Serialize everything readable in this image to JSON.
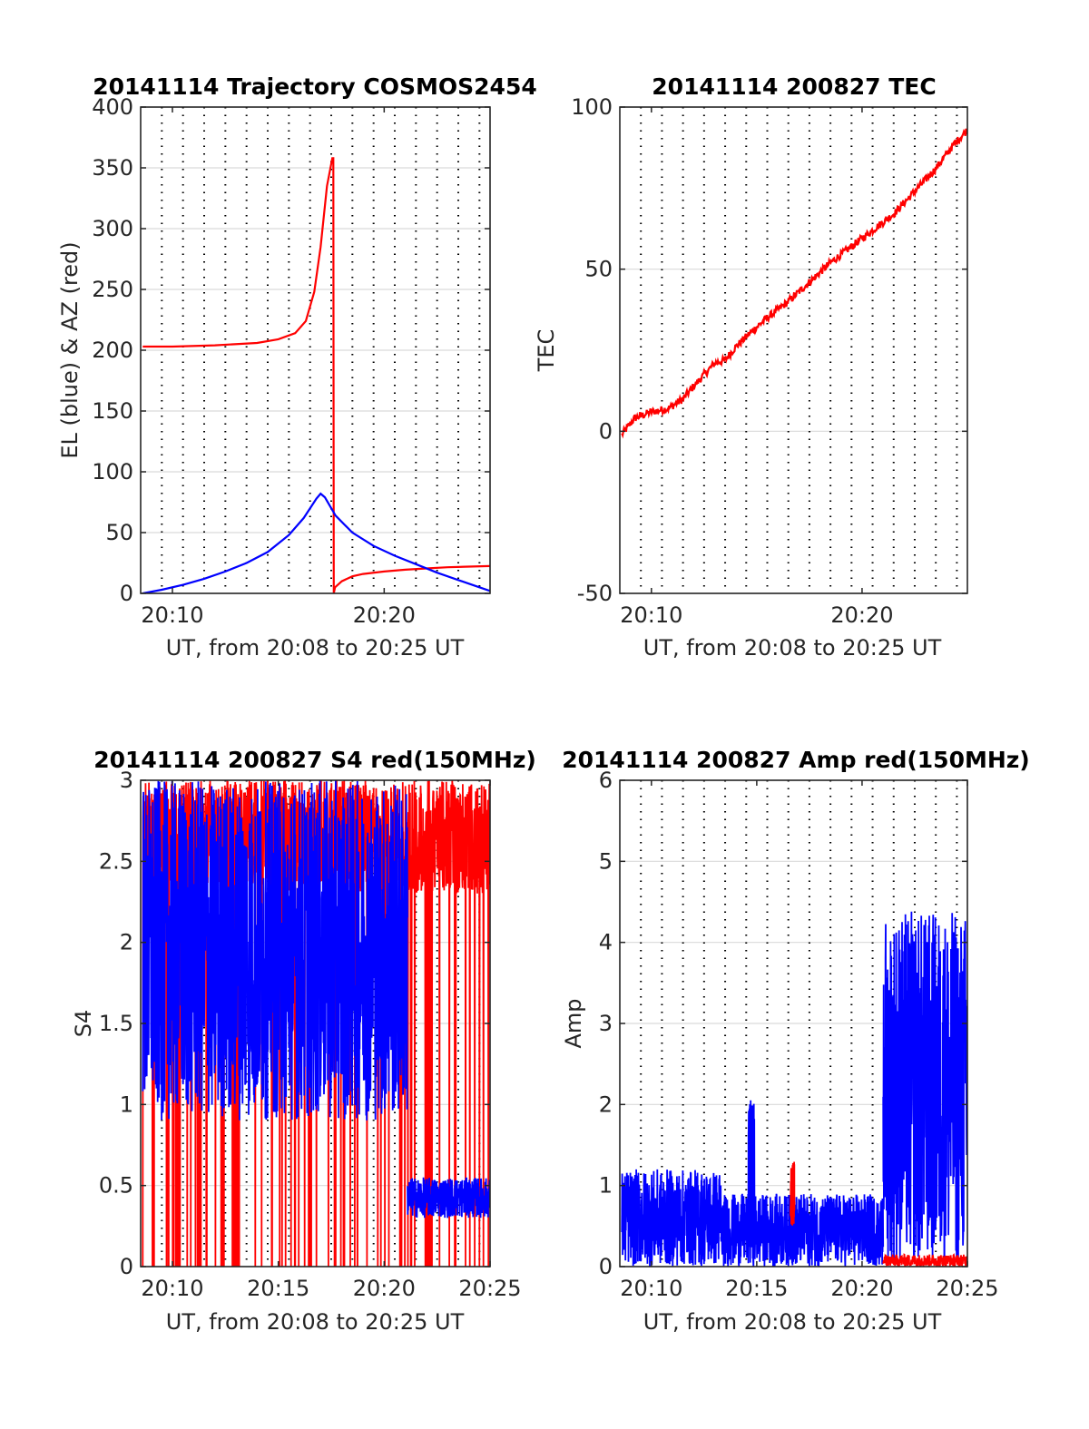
{
  "colors": {
    "red": "#ff0000",
    "blue": "#0000ff",
    "grid": "#d9d9d9",
    "axis": "#262626",
    "vline": "#000000"
  },
  "chart_data": [
    {
      "id": "trajectory",
      "type": "line",
      "title": "20141114 Trajectory COSMOS2454",
      "xlabel": "UT, from 20:08 to 20:25 UT",
      "ylabel": "EL (blue) & AZ (red)",
      "x_unit": "minutes after 20:00 UT",
      "xlim": [
        8.5,
        25
      ],
      "ylim": [
        0,
        400
      ],
      "yticks": [
        0,
        50,
        100,
        150,
        200,
        250,
        300,
        350,
        400
      ],
      "yticklabels": [
        "0",
        "50",
        "100",
        "150",
        "200",
        "250",
        "300",
        "350",
        "400"
      ],
      "xticks": [
        10,
        20
      ],
      "xticklabels": [
        "20:10",
        "20:20"
      ],
      "grid": true,
      "series": [
        {
          "color": "red",
          "x": [
            8.6,
            10,
            12,
            14,
            15,
            15.8,
            16.3,
            16.7,
            17,
            17.3,
            17.55,
            17.6,
            17.62,
            17.68,
            18,
            18.5,
            19,
            20,
            21,
            22,
            23,
            24,
            25
          ],
          "y": [
            203,
            203,
            204,
            206,
            209,
            214,
            224,
            248,
            285,
            335,
            358,
            358,
            0,
            5,
            10,
            14,
            16,
            18,
            19.5,
            20.5,
            21.5,
            22,
            22.5
          ]
        },
        {
          "color": "blue",
          "x": [
            8.6,
            9.5,
            10.5,
            11.5,
            12.5,
            13.5,
            14.5,
            15.5,
            16.2,
            16.8,
            17.0,
            17.2,
            17.7,
            18.5,
            19.5,
            20.5,
            21.5,
            22.5,
            23.5,
            24.5,
            25
          ],
          "y": [
            0,
            3,
            7,
            12,
            18,
            25,
            34,
            48,
            62,
            78,
            82,
            79,
            64,
            50,
            39,
            31,
            24,
            17,
            11,
            5,
            2
          ]
        }
      ],
      "dotted_vlines": [
        9.5,
        10.5,
        11.5,
        12.5,
        13.5,
        14.5,
        15.5,
        16.5,
        17.5,
        18.5,
        19.5,
        20.5,
        21.5,
        22.5,
        23.5,
        24.5
      ]
    },
    {
      "id": "tec",
      "type": "line",
      "title": "20141114 200827 TEC",
      "xlabel": "UT, from 20:08 to 20:25 UT",
      "ylabel": "TEC",
      "x_unit": "minutes after 20:00 UT",
      "xlim": [
        8.5,
        25
      ],
      "ylim": [
        -50,
        100
      ],
      "yticks": [
        -50,
        0,
        50,
        100
      ],
      "yticklabels": [
        "-50",
        "0",
        "50",
        "100"
      ],
      "xticks": [
        10,
        20
      ],
      "xticklabels": [
        "20:10",
        "20:20"
      ],
      "grid": true,
      "series": [
        {
          "color": "red",
          "x": [
            8.6,
            9.2,
            10,
            10.8,
            11.5,
            12.3,
            13,
            13.5,
            14,
            14.8,
            15.5,
            16.5,
            17.5,
            18.5,
            19.5,
            20.5,
            21.5,
            22.5,
            23.5,
            24.3,
            25
          ],
          "y": [
            -1,
            4,
            6,
            7,
            10,
            16,
            21,
            22,
            26,
            31,
            35,
            40,
            46,
            52,
            57,
            62,
            67,
            74,
            81,
            88,
            93
          ]
        }
      ],
      "dotted_vlines": [
        9.5,
        10.5,
        11.5,
        12.5,
        13.5,
        14.5,
        15.5,
        16.5,
        17.5,
        18.5,
        19.5,
        20.5,
        21.5,
        22.5,
        23.5,
        24.5
      ]
    },
    {
      "id": "s4",
      "type": "line",
      "title": "20141114 200827 S4 red(150MHz)",
      "xlabel": "UT, from 20:08 to 20:25 UT",
      "ylabel": "S4",
      "x_unit": "minutes after 20:00 UT",
      "xlim": [
        8.5,
        25
      ],
      "ylim": [
        0,
        3
      ],
      "yticks": [
        0,
        0.5,
        1,
        1.5,
        2,
        2.5,
        3
      ],
      "yticklabels": [
        "0",
        "0.5",
        "1",
        "1.5",
        "2",
        "2.5",
        "3"
      ],
      "xticks": [
        10,
        15,
        20,
        25
      ],
      "xticklabels": [
        "20:10",
        "20:15",
        "20:20",
        "20:25"
      ],
      "grid": true,
      "noise": [
        {
          "color": "red",
          "x0": 8.6,
          "x1": 25,
          "low": 0,
          "high": 3,
          "pattern": "spikes"
        },
        {
          "color": "blue",
          "x0": 8.6,
          "x1": 21.1,
          "low": 0.9,
          "high": 3,
          "pattern": "dense"
        },
        {
          "color": "blue",
          "x0": 21.1,
          "x1": 25,
          "low": 0.3,
          "high": 0.55,
          "pattern": "band"
        }
      ],
      "dotted_vlines": [
        9.5,
        10.5,
        11.5,
        12.5,
        13.5,
        14.5,
        15.5,
        16.5,
        17.5,
        18.5,
        19.5,
        20.5,
        21.5,
        22.5,
        23.5,
        24.5
      ]
    },
    {
      "id": "amp",
      "type": "line",
      "title": "20141114 200827 Amp red(150MHz)",
      "xlabel": "UT, from 20:08 to 20:25 UT",
      "ylabel": "Amp",
      "x_unit": "minutes after 20:00 UT",
      "xlim": [
        8.5,
        25
      ],
      "ylim": [
        0,
        6
      ],
      "yticks": [
        0,
        1,
        2,
        3,
        4,
        5,
        6
      ],
      "yticklabels": [
        "0",
        "1",
        "2",
        "3",
        "4",
        "5",
        "6"
      ],
      "xticks": [
        10,
        15,
        20,
        25
      ],
      "xticklabels": [
        "20:10",
        "20:15",
        "20:20",
        "20:25"
      ],
      "grid": true,
      "noise": [
        {
          "color": "blue",
          "x0": 8.6,
          "x1": 13.3,
          "low": 0,
          "high": 1.2,
          "pattern": "band"
        },
        {
          "color": "blue",
          "x0": 13.3,
          "x1": 21.0,
          "low": 0,
          "high": 0.9,
          "pattern": "band"
        },
        {
          "color": "blue",
          "x0": 14.6,
          "x1": 14.9,
          "low": 0.3,
          "high": 2.1,
          "pattern": "band"
        },
        {
          "color": "red",
          "x0": 16.6,
          "x1": 16.8,
          "low": 0.5,
          "high": 1.3,
          "pattern": "band"
        },
        {
          "color": "blue",
          "x0": 21.0,
          "x1": 25,
          "low": 0,
          "high": 4.4,
          "pattern": "band"
        },
        {
          "color": "red",
          "x0": 21.0,
          "x1": 25,
          "low": 0,
          "high": 0.15,
          "pattern": "band"
        }
      ],
      "dotted_vlines": [
        9.5,
        10.5,
        11.5,
        12.5,
        13.5,
        14.5,
        15.5,
        16.5,
        17.5,
        18.5,
        19.5,
        20.5,
        21.5,
        22.5,
        23.5,
        24.5
      ]
    }
  ]
}
